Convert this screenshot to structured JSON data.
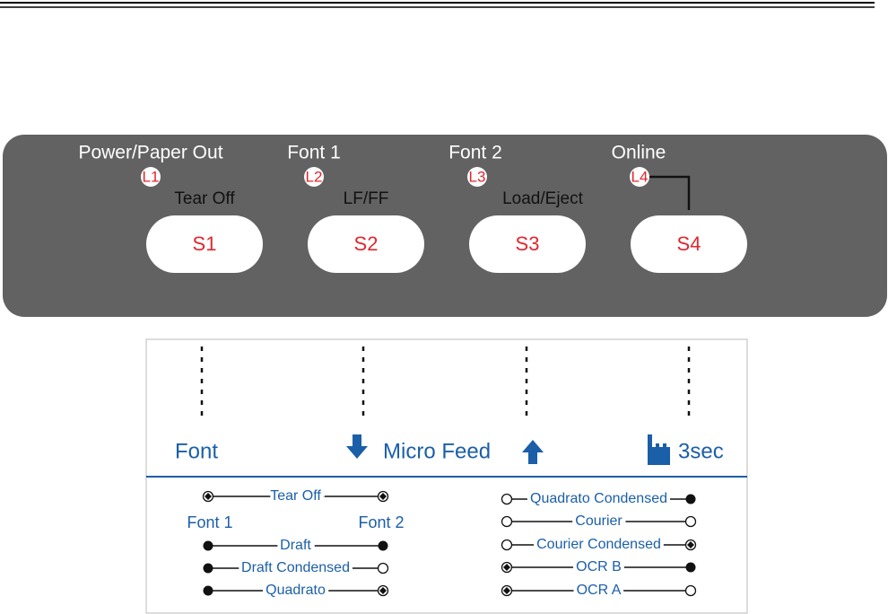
{
  "panel": {
    "buttons": [
      {
        "indicator_label": "Power/Paper Out",
        "led": "L1",
        "function": "Tear Off",
        "button": "S1"
      },
      {
        "indicator_label": "Font 1",
        "led": "L2",
        "function": "LF/FF",
        "button": "S2"
      },
      {
        "indicator_label": "Font 2",
        "led": "L3",
        "function": "Load/Eject",
        "button": "S3"
      },
      {
        "indicator_label": "Online",
        "led": "L4",
        "button": "S4"
      }
    ]
  },
  "legend": {
    "headers": [
      "Font",
      "Micro Feed",
      "3sec"
    ],
    "left": {
      "top": "Tear Off",
      "column_labels": [
        "Font 1",
        "Font 2"
      ],
      "rows": [
        "Draft",
        "Draft Condensed",
        "Quadrato"
      ]
    },
    "right": {
      "rows": [
        "Quadrato Condensed",
        "Courier",
        "Courier Condensed",
        "OCR B",
        "OCR A"
      ]
    }
  }
}
